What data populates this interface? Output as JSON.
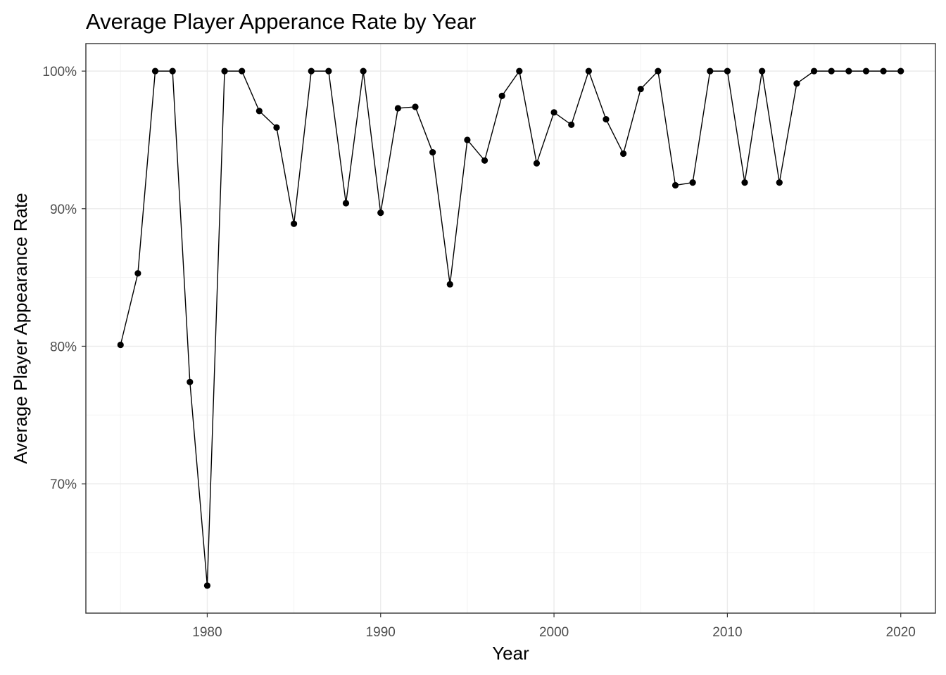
{
  "chart_data": {
    "type": "line",
    "title": "Average Player Apperance Rate by Year",
    "xlabel": "Year",
    "ylabel": "Average Player Appearance Rate",
    "xlim": [
      1973,
      2022
    ],
    "ylim": [
      60.6,
      102.0
    ],
    "x_ticks": [
      1980,
      1990,
      2000,
      2010,
      2020
    ],
    "x_tick_labels": [
      "1980",
      "1990",
      "2000",
      "2010",
      "2020"
    ],
    "y_ticks": [
      70,
      80,
      90,
      100
    ],
    "y_tick_labels": [
      "70%",
      "80%",
      "90%",
      "100%"
    ],
    "grid": true,
    "legend": "none",
    "series": [
      {
        "color": "#000000",
        "x": [
          1975,
          1976,
          1977,
          1978,
          1979,
          1980,
          1981,
          1982,
          1983,
          1984,
          1985,
          1986,
          1987,
          1988,
          1989,
          1990,
          1991,
          1992,
          1993,
          1994,
          1995,
          1996,
          1997,
          1998,
          1999,
          2000,
          2001,
          2002,
          2003,
          2004,
          2005,
          2006,
          2007,
          2008,
          2009,
          2010,
          2011,
          2012,
          2013,
          2014,
          2015,
          2016,
          2017,
          2018,
          2019,
          2020
        ],
        "y": [
          80.1,
          85.3,
          100,
          100,
          77.4,
          62.6,
          100,
          100,
          97.1,
          95.9,
          88.9,
          100,
          100,
          90.4,
          100,
          89.7,
          97.3,
          97.4,
          94.1,
          84.5,
          95.0,
          93.5,
          98.2,
          100,
          93.3,
          97.0,
          96.1,
          100,
          96.5,
          94.0,
          98.7,
          100,
          91.7,
          91.9,
          100,
          100,
          91.9,
          100,
          91.9,
          99.1,
          100,
          100,
          100,
          100,
          100,
          100
        ]
      }
    ]
  }
}
